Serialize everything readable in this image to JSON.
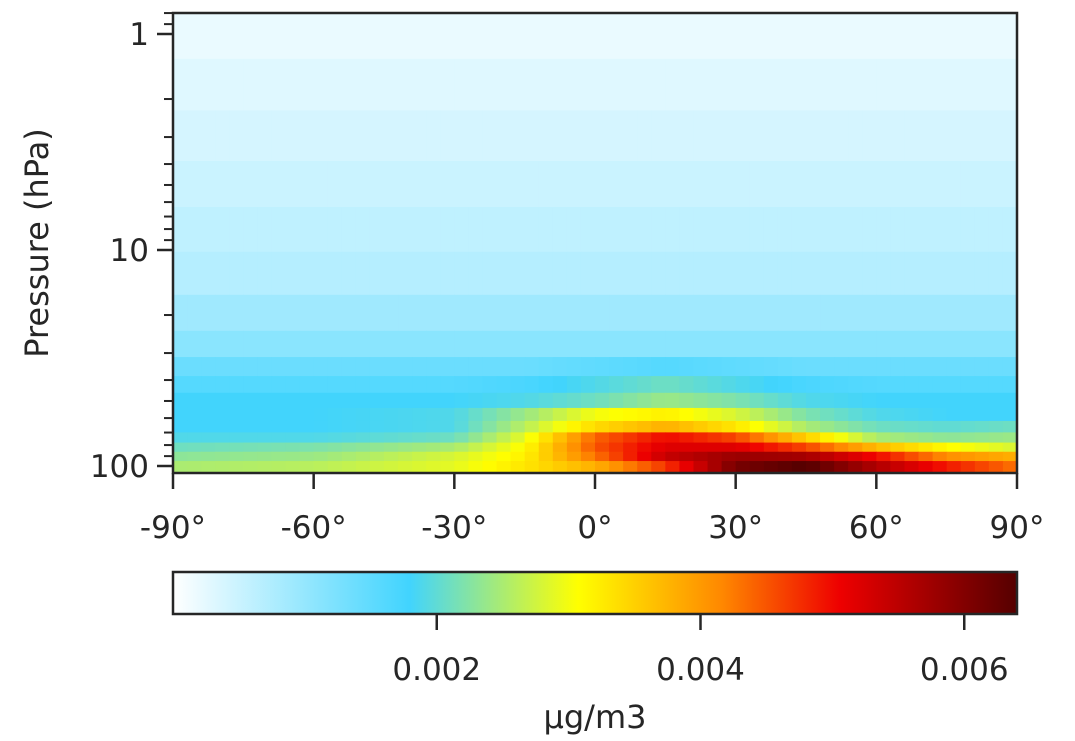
{
  "chart_data": {
    "type": "heatmap",
    "title": "",
    "xlabel": "",
    "ylabel": "Pressure (hPa)",
    "x_range": [
      -90,
      90
    ],
    "y_range": [
      1,
      100
    ],
    "y_scale": "log",
    "y_inverted": true,
    "x_ticks": [
      {
        "value": -90,
        "label": "-90°"
      },
      {
        "value": -60,
        "label": "-60°"
      },
      {
        "value": -30,
        "label": "-30°"
      },
      {
        "value": 0,
        "label": "0°"
      },
      {
        "value": 30,
        "label": "30°"
      },
      {
        "value": 60,
        "label": "60°"
      },
      {
        "value": 90,
        "label": "90°"
      }
    ],
    "y_ticks": [
      {
        "value": 1,
        "label": "1"
      },
      {
        "value": 10,
        "label": "10"
      },
      {
        "value": 100,
        "label": "100"
      }
    ],
    "colorbar": {
      "label": "µg/m3",
      "range": [
        0,
        0.0064
      ],
      "ticks": [
        {
          "value": 0.002,
          "label": "0.002"
        },
        {
          "value": 0.004,
          "label": "0.004"
        },
        {
          "value": 0.006,
          "label": "0.006"
        }
      ],
      "colors": [
        "#ffffff",
        "#41d4fe",
        "#ffff00",
        "#ff8800",
        "#ee0000",
        "#550000"
      ],
      "color_positions": [
        0,
        0.28,
        0.48,
        0.65,
        0.79,
        1.0
      ]
    },
    "latitudes": [
      -90,
      -60,
      -30,
      -15,
      0,
      15,
      30,
      45,
      60,
      75,
      90
    ],
    "pressure_levels": [
      1,
      1.7,
      3,
      5,
      8,
      13,
      20,
      28,
      35,
      42,
      50,
      58,
      66,
      74,
      82,
      90,
      100
    ],
    "values": [
      [
        0.0002,
        0.0002,
        0.0002,
        0.0002,
        0.0002,
        0.0002,
        0.0002,
        0.0002,
        0.0002,
        0.0002,
        0.0002
      ],
      [
        0.0003,
        0.0003,
        0.0003,
        0.0003,
        0.0003,
        0.0003,
        0.0003,
        0.0003,
        0.0003,
        0.0003,
        0.0003
      ],
      [
        0.0004,
        0.0004,
        0.0004,
        0.0004,
        0.0004,
        0.0004,
        0.0004,
        0.0004,
        0.0004,
        0.0004,
        0.0004
      ],
      [
        0.0005,
        0.0005,
        0.0005,
        0.0005,
        0.0005,
        0.0005,
        0.0005,
        0.0005,
        0.0005,
        0.0005,
        0.0005
      ],
      [
        0.0006,
        0.0006,
        0.0006,
        0.0006,
        0.0006,
        0.0006,
        0.0006,
        0.0006,
        0.0006,
        0.0006,
        0.0006
      ],
      [
        0.0007,
        0.0007,
        0.0007,
        0.0007,
        0.0007,
        0.0007,
        0.0007,
        0.0007,
        0.0007,
        0.0007,
        0.0007
      ],
      [
        0.0009,
        0.0009,
        0.0009,
        0.0009,
        0.0009,
        0.0009,
        0.0009,
        0.0009,
        0.0009,
        0.0009,
        0.0009
      ],
      [
        0.0011,
        0.0011,
        0.0011,
        0.0011,
        0.0011,
        0.0011,
        0.0011,
        0.0011,
        0.0011,
        0.0011,
        0.0011
      ],
      [
        0.0014,
        0.0014,
        0.0014,
        0.0014,
        0.0015,
        0.0016,
        0.0015,
        0.0014,
        0.0014,
        0.0014,
        0.0014
      ],
      [
        0.0016,
        0.0016,
        0.0016,
        0.0017,
        0.0019,
        0.0021,
        0.0019,
        0.0017,
        0.0016,
        0.0016,
        0.0016
      ],
      [
        0.0018,
        0.0018,
        0.0018,
        0.0019,
        0.0021,
        0.0024,
        0.0022,
        0.0019,
        0.0018,
        0.0018,
        0.0018
      ],
      [
        0.0018,
        0.0018,
        0.0019,
        0.0024,
        0.003,
        0.0032,
        0.0028,
        0.0022,
        0.0019,
        0.0018,
        0.0018
      ],
      [
        0.0018,
        0.0018,
        0.0019,
        0.0026,
        0.0034,
        0.0038,
        0.0033,
        0.0025,
        0.0021,
        0.002,
        0.0021
      ],
      [
        0.0019,
        0.0019,
        0.0021,
        0.0029,
        0.0044,
        0.005,
        0.0046,
        0.0035,
        0.0025,
        0.0023,
        0.0024
      ],
      [
        0.0021,
        0.0022,
        0.0025,
        0.0031,
        0.0045,
        0.0052,
        0.0052,
        0.0046,
        0.0037,
        0.0031,
        0.0028
      ],
      [
        0.0023,
        0.0024,
        0.0028,
        0.0032,
        0.0043,
        0.0054,
        0.0058,
        0.0057,
        0.005,
        0.0041,
        0.0038
      ],
      [
        0.0025,
        0.0026,
        0.0029,
        0.0033,
        0.0038,
        0.0047,
        0.0061,
        0.0064,
        0.0056,
        0.0049,
        0.0043
      ]
    ]
  }
}
